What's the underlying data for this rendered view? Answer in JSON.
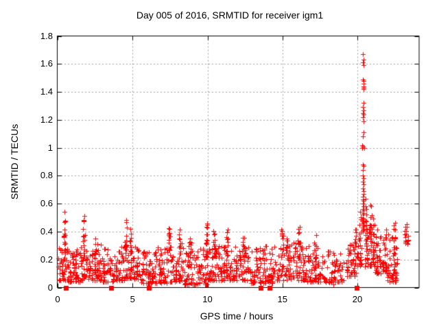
{
  "title": "Day 005 of 2016, SRMTID for receiver igm1",
  "x_axis": {
    "label": "GPS time / hours",
    "tick_labels": [
      "0",
      "5",
      "10",
      "15",
      "20"
    ],
    "tick_values": [
      0,
      5,
      10,
      15,
      20
    ],
    "range": [
      0,
      24.1
    ]
  },
  "y_axis": {
    "label": "SRMTID / TECUs",
    "tick_labels": [
      "0",
      "0.2",
      "0.4",
      "0.6",
      "0.8",
      "1",
      "1.2",
      "1.4",
      "1.6",
      "1.8"
    ],
    "tick_values": [
      0,
      0.2,
      0.4,
      0.6,
      0.8,
      1.0,
      1.2,
      1.4,
      1.6,
      1.8
    ],
    "range": [
      0,
      1.8
    ]
  },
  "colors": {
    "points": "#ff0000",
    "grid": "#9c9c9c",
    "axis": "#000000",
    "text": "#000000",
    "background": "#ffffff"
  },
  "chart_data": {
    "type": "scatter",
    "marker": "plus",
    "title": "Day 005 of 2016, SRMTID for receiver igm1",
    "xlabel": "GPS time / hours",
    "ylabel": "SRMTID / TECUs",
    "xlim": [
      0,
      24.1
    ],
    "ylim": [
      0,
      1.8
    ],
    "grid": true,
    "legend": "none",
    "series_name": "SRMTID",
    "description_of_distribution": "Dense red plus-marker scatter 0.02-0.45 TECUs across 0-23.4 h with satellite-arc columns; large spike to 1.67 TECUs at 20.4 h; isolated square points at zero.",
    "zero_points_x": [
      0.55,
      3.55,
      6.1,
      13.55,
      14.15,
      19.95
    ],
    "spike_points": [
      [
        20.38,
        1.67
      ],
      [
        20.4,
        1.63
      ],
      [
        20.37,
        1.61
      ],
      [
        20.41,
        1.59
      ],
      [
        20.38,
        1.49
      ],
      [
        20.41,
        1.48
      ],
      [
        20.39,
        1.46
      ],
      [
        20.42,
        1.44
      ],
      [
        20.43,
        1.43
      ],
      [
        20.41,
        1.42
      ],
      [
        20.4,
        1.32
      ],
      [
        20.37,
        1.29
      ],
      [
        20.39,
        1.27
      ],
      [
        20.36,
        1.25
      ],
      [
        20.41,
        1.24
      ],
      [
        20.38,
        1.22
      ],
      [
        20.43,
        1.19
      ],
      [
        20.39,
        1.11
      ],
      [
        20.36,
        1.08
      ],
      [
        20.34,
        1.02
      ],
      [
        20.38,
        1.01
      ],
      [
        20.32,
        1.0
      ],
      [
        20.44,
        1.0
      ],
      [
        20.37,
        0.88
      ],
      [
        20.41,
        0.87
      ],
      [
        20.35,
        0.84
      ],
      [
        20.36,
        0.8
      ],
      [
        20.4,
        0.78
      ],
      [
        20.38,
        0.76
      ],
      [
        20.42,
        0.74
      ],
      [
        20.37,
        0.71
      ],
      [
        20.39,
        0.69
      ],
      [
        20.41,
        0.67
      ],
      [
        20.36,
        0.65
      ],
      [
        20.38,
        0.63
      ],
      [
        20.43,
        0.62
      ],
      [
        20.35,
        0.6
      ],
      [
        20.4,
        0.58
      ],
      [
        20.37,
        0.56
      ],
      [
        20.39,
        0.55
      ],
      [
        20.42,
        0.53
      ],
      [
        20.36,
        0.52
      ],
      [
        20.38,
        0.5
      ],
      [
        20.41,
        0.49
      ],
      [
        20.34,
        0.48
      ],
      [
        20.4,
        0.47
      ],
      [
        20.37,
        0.46
      ],
      [
        20.43,
        0.45
      ],
      [
        20.39,
        0.44
      ],
      [
        20.35,
        0.43
      ],
      [
        20.41,
        0.42
      ],
      [
        20.38,
        0.41
      ],
      [
        20.36,
        0.4
      ]
    ],
    "baseline_segments": [
      [
        0.02,
        0.6,
        42,
        0.05,
        0.3
      ],
      [
        0.6,
        1.5,
        70,
        0.04,
        0.28
      ],
      [
        1.5,
        2.2,
        48,
        0.05,
        0.3
      ],
      [
        2.2,
        3.0,
        50,
        0.05,
        0.32
      ],
      [
        3.0,
        3.8,
        50,
        0.04,
        0.28
      ],
      [
        3.8,
        4.6,
        46,
        0.05,
        0.3
      ],
      [
        4.6,
        5.4,
        50,
        0.06,
        0.3
      ],
      [
        5.4,
        6.4,
        58,
        0.03,
        0.26
      ],
      [
        6.4,
        7.4,
        62,
        0.03,
        0.3
      ],
      [
        7.4,
        8.4,
        60,
        0.04,
        0.32
      ],
      [
        8.4,
        9.4,
        60,
        0.02,
        0.3
      ],
      [
        9.4,
        10.0,
        40,
        0.02,
        0.28
      ],
      [
        10.0,
        10.8,
        56,
        0.05,
        0.32
      ],
      [
        10.8,
        11.8,
        62,
        0.05,
        0.3
      ],
      [
        11.8,
        12.8,
        60,
        0.05,
        0.3
      ],
      [
        12.8,
        13.8,
        56,
        0.03,
        0.28
      ],
      [
        13.8,
        14.6,
        46,
        0.03,
        0.3
      ],
      [
        14.6,
        15.6,
        56,
        0.05,
        0.32
      ],
      [
        15.6,
        16.6,
        62,
        0.05,
        0.33
      ],
      [
        16.6,
        17.5,
        56,
        0.04,
        0.32
      ],
      [
        17.5,
        18.4,
        36,
        0.02,
        0.26
      ],
      [
        18.4,
        19.2,
        36,
        0.04,
        0.26
      ],
      [
        19.2,
        19.9,
        42,
        0.08,
        0.32
      ],
      [
        19.9,
        20.3,
        26,
        0.15,
        0.42
      ],
      [
        20.5,
        21.2,
        58,
        0.15,
        0.48
      ],
      [
        21.2,
        22.0,
        62,
        0.1,
        0.42
      ],
      [
        22.0,
        22.65,
        48,
        0.04,
        0.4
      ],
      [
        23.1,
        23.45,
        8,
        0.3,
        0.42
      ]
    ],
    "arc_columns": [
      [
        0.45,
        14,
        0.3,
        0.57
      ],
      [
        1.75,
        12,
        0.28,
        0.52
      ],
      [
        2.5,
        8,
        0.24,
        0.36
      ],
      [
        4.55,
        14,
        0.25,
        0.5
      ],
      [
        4.85,
        10,
        0.2,
        0.46
      ],
      [
        7.45,
        12,
        0.24,
        0.44
      ],
      [
        8.15,
        10,
        0.24,
        0.42
      ],
      [
        8.85,
        8,
        0.22,
        0.36
      ],
      [
        9.95,
        16,
        0.2,
        0.48
      ],
      [
        10.45,
        12,
        0.22,
        0.45
      ],
      [
        11.3,
        10,
        0.22,
        0.42
      ],
      [
        12.4,
        10,
        0.2,
        0.37
      ],
      [
        15.0,
        11,
        0.24,
        0.42
      ],
      [
        15.35,
        8,
        0.2,
        0.4
      ],
      [
        16.1,
        12,
        0.2,
        0.44
      ],
      [
        17.2,
        8,
        0.2,
        0.4
      ],
      [
        19.9,
        8,
        0.25,
        0.48
      ],
      [
        20.15,
        8,
        0.3,
        0.55
      ],
      [
        20.6,
        10,
        0.3,
        0.65
      ],
      [
        20.9,
        10,
        0.25,
        0.6
      ],
      [
        21.05,
        8,
        0.2,
        0.58
      ],
      [
        22.45,
        16,
        0.1,
        0.47
      ],
      [
        23.25,
        5,
        0.38,
        0.47
      ],
      [
        23.35,
        4,
        0.3,
        0.4
      ]
    ]
  }
}
